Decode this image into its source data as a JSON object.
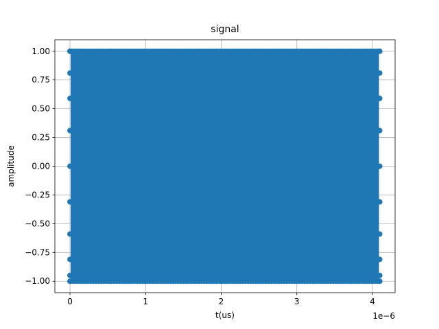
{
  "chart_data": {
    "type": "scatter",
    "title": "signal",
    "xlabel": "t(us)",
    "ylabel": "amplitude",
    "x_offset_label": "1e−6",
    "xlim": [
      -0.2,
      4.3
    ],
    "ylim": [
      -1.1,
      1.1
    ],
    "x_ticks": [
      0,
      1,
      2,
      3,
      4
    ],
    "x_tick_labels": [
      "0",
      "1",
      "2",
      "3",
      "4"
    ],
    "y_ticks": [
      -1.0,
      -0.75,
      -0.5,
      -0.25,
      0.0,
      0.25,
      0.5,
      0.75,
      1.0
    ],
    "y_tick_labels": [
      "−1.00",
      "−0.75",
      "−0.50",
      "−0.25",
      "0.00",
      "0.25",
      "0.50",
      "0.75",
      "1.00"
    ],
    "grid": true,
    "series": [
      {
        "color": "#1f77b4",
        "marker": "circle",
        "x_range": [
          0,
          4.096
        ],
        "y_range": [
          -1.0,
          1.0
        ],
        "edge_points_start": {
          "x": 0,
          "y": [
            1.0,
            0.81,
            0.59,
            0.31,
            0.0,
            -0.31,
            -0.59,
            -0.81,
            -0.95,
            -1.0
          ]
        },
        "edge_points_end": {
          "x": 4.096,
          "y": [
            1.0,
            0.81,
            0.59,
            0.31,
            0.0,
            -0.31,
            -0.59,
            -0.81,
            -0.95,
            -1.0
          ]
        }
      }
    ]
  }
}
